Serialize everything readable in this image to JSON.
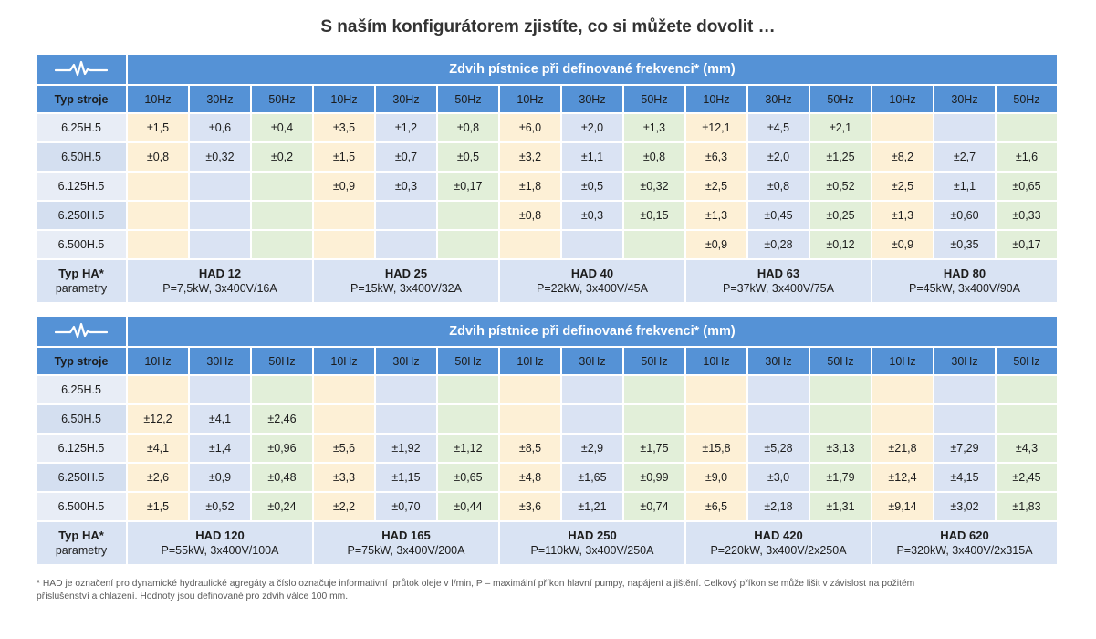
{
  "title": "S naším konfigurátorem zjistíte, co si můžete dovolit …",
  "colors": {
    "header_blue": "#5592d6",
    "row_label_light": "#e8edf6",
    "row_label_dark": "#d4dff0",
    "col_10hz": "#fdf0d6",
    "col_30hz": "#dae3f3",
    "col_50hz": "#e2efd9",
    "unit_row": "#d9e3f3"
  },
  "icons": {
    "table_header": "waveform-icon"
  },
  "tables": [
    {
      "header_title": "Zdvih pístnice při definované frekvenci* (mm)",
      "type_label": "Typ stroje",
      "columns": [
        "10Hz",
        "30Hz",
        "50Hz",
        "10Hz",
        "30Hz",
        "50Hz",
        "10Hz",
        "30Hz",
        "50Hz",
        "10Hz",
        "30Hz",
        "50Hz",
        "10Hz",
        "30Hz",
        "50Hz"
      ],
      "rows": [
        {
          "label": "6.25H.5",
          "values": [
            "±1,5",
            "±0,6",
            "±0,4",
            "±3,5",
            "±1,2",
            "±0,8",
            "±6,0",
            "±2,0",
            "±1,3",
            "±12,1",
            "±4,5",
            "±2,1",
            "",
            "",
            ""
          ]
        },
        {
          "label": "6.50H.5",
          "values": [
            "±0,8",
            "±0,32",
            "±0,2",
            "±1,5",
            "±0,7",
            "±0,5",
            "±3,2",
            "±1,1",
            "±0,8",
            "±6,3",
            "±2,0",
            "±1,25",
            "±8,2",
            "±2,7",
            "±1,6"
          ]
        },
        {
          "label": "6.125H.5",
          "values": [
            "",
            "",
            "",
            "±0,9",
            "±0,3",
            "±0,17",
            "±1,8",
            "±0,5",
            "±0,32",
            "±2,5",
            "±0,8",
            "±0,52",
            "±2,5",
            "±1,1",
            "±0,65"
          ]
        },
        {
          "label": "6.250H.5",
          "values": [
            "",
            "",
            "",
            "",
            "",
            "",
            "±0,8",
            "±0,3",
            "±0,15",
            "±1,3",
            "±0,45",
            "±0,25",
            "±1,3",
            "±0,60",
            "±0,33"
          ]
        },
        {
          "label": "6.500H.5",
          "values": [
            "",
            "",
            "",
            "",
            "",
            "",
            "",
            "",
            "",
            "±0,9",
            "±0,28",
            "±0,12",
            "±0,9",
            "±0,35",
            "±0,17"
          ]
        }
      ],
      "ha_label": "Typ HA*",
      "ha_sublabel": "parametry",
      "units": [
        {
          "name": "HAD 12",
          "params": "P=7,5kW, 3x400V/16A"
        },
        {
          "name": "HAD 25",
          "params": "P=15kW, 3x400V/32A"
        },
        {
          "name": "HAD 40",
          "params": "P=22kW, 3x400V/45A"
        },
        {
          "name": "HAD 63",
          "params": "P=37kW, 3x400V/75A"
        },
        {
          "name": "HAD 80",
          "params": "P=45kW, 3x400V/90A"
        }
      ]
    },
    {
      "header_title": "Zdvih pístnice při definované frekvenci* (mm)",
      "type_label": "Typ stroje",
      "columns": [
        "10Hz",
        "30Hz",
        "50Hz",
        "10Hz",
        "30Hz",
        "50Hz",
        "10Hz",
        "30Hz",
        "50Hz",
        "10Hz",
        "30Hz",
        "50Hz",
        "10Hz",
        "30Hz",
        "50Hz"
      ],
      "rows": [
        {
          "label": "6.25H.5",
          "values": [
            "",
            "",
            "",
            "",
            "",
            "",
            "",
            "",
            "",
            "",
            "",
            "",
            "",
            "",
            ""
          ]
        },
        {
          "label": "6.50H.5",
          "values": [
            "±12,2",
            "±4,1",
            "±2,46",
            "",
            "",
            "",
            "",
            "",
            "",
            "",
            "",
            "",
            "",
            "",
            ""
          ]
        },
        {
          "label": "6.125H.5",
          "values": [
            "±4,1",
            "±1,4",
            "±0,96",
            "±5,6",
            "±1,92",
            "±1,12",
            "±8,5",
            "±2,9",
            "±1,75",
            "±15,8",
            "±5,28",
            "±3,13",
            "±21,8",
            "±7,29",
            "±4,3"
          ]
        },
        {
          "label": "6.250H.5",
          "values": [
            "±2,6",
            "±0,9",
            "±0,48",
            "±3,3",
            "±1,15",
            "±0,65",
            "±4,8",
            "±1,65",
            "±0,99",
            "±9,0",
            "±3,0",
            "±1,79",
            "±12,4",
            "±4,15",
            "±2,45"
          ]
        },
        {
          "label": "6.500H.5",
          "values": [
            "±1,5",
            "±0,52",
            "±0,24",
            "±2,2",
            "±0,70",
            "±0,44",
            "±3,6",
            "±1,21",
            "±0,74",
            "±6,5",
            "±2,18",
            "±1,31",
            "±9,14",
            "±3,02",
            "±1,83"
          ]
        }
      ],
      "ha_label": "Typ HA*",
      "ha_sublabel": "parametry",
      "units": [
        {
          "name": "HAD 120",
          "params": "P=55kW, 3x400V/100A"
        },
        {
          "name": "HAD 165",
          "params": "P=75kW, 3x400V/200A"
        },
        {
          "name": "HAD 250",
          "params": "P=110kW, 3x400V/250A"
        },
        {
          "name": "HAD 420",
          "params": "P=220kW, 3x400V/2x250A"
        },
        {
          "name": "HAD 620",
          "params": "P=320kW, 3x400V/2x315A"
        }
      ]
    }
  ],
  "footnote": [
    "* HAD je označení pro dynamické hydraulické agregáty a číslo označuje informativní  průtok oleje v l/min, P – maximální příkon hlavní pumpy, napájení a jištění. Celkový příkon se může lišit v závislost na požitém",
    "příslušenství a chlazení. Hodnoty jsou definované pro zdvih válce 100 mm."
  ]
}
